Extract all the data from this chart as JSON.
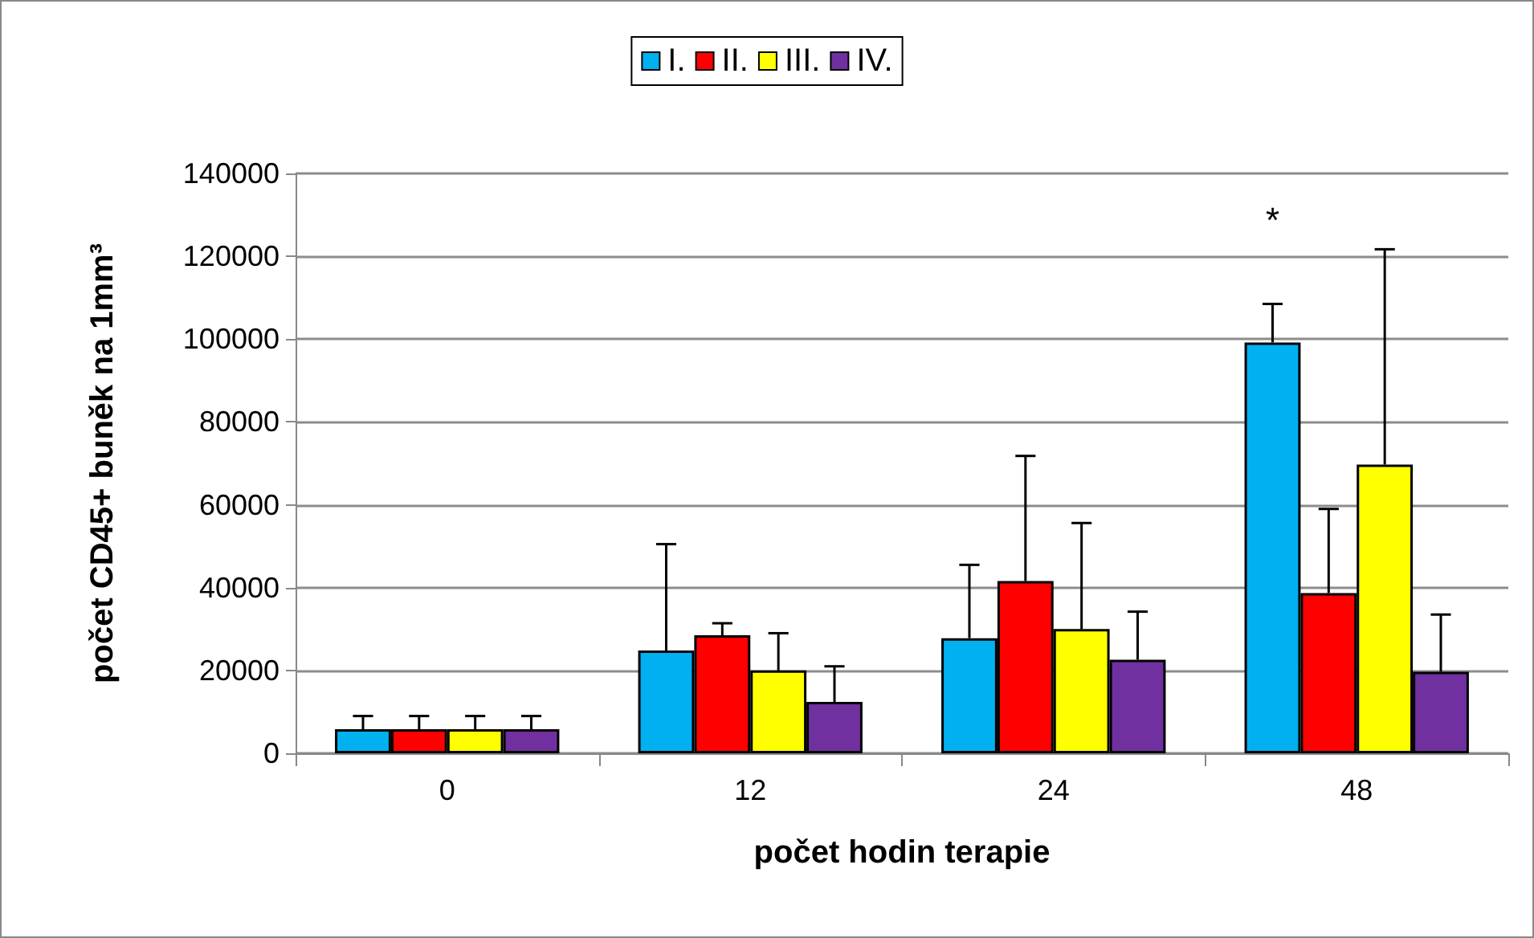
{
  "chart_data": {
    "type": "bar",
    "xlabel": "počet hodin terapie",
    "ylabel": "počet CD45+ buněk na 1mm³",
    "categories": [
      "0",
      "12",
      "24",
      "48"
    ],
    "series": [
      {
        "name": "I.",
        "color": "#00b0f0",
        "values": [
          5800,
          24800,
          27800,
          99200
        ],
        "errors": [
          [
            5800,
            9000
          ],
          [
            24800,
            50500
          ],
          [
            27800,
            45500
          ],
          [
            99200,
            108500
          ]
        ]
      },
      {
        "name": "II.",
        "color": "#ff0000",
        "values": [
          5800,
          28500,
          41600,
          38700
        ],
        "errors": [
          [
            5800,
            9000
          ],
          [
            28500,
            31400
          ],
          [
            41600,
            71800
          ],
          [
            38700,
            59000
          ]
        ]
      },
      {
        "name": "III.",
        "color": "#ffff00",
        "values": [
          5800,
          20000,
          30000,
          69700
        ],
        "errors": [
          [
            5800,
            9000
          ],
          [
            20000,
            29000
          ],
          [
            30000,
            55600
          ],
          [
            69700,
            121700
          ]
        ]
      },
      {
        "name": "IV.",
        "color": "#7030a0",
        "values": [
          5800,
          12400,
          22600,
          19700
        ],
        "errors": [
          [
            5800,
            9000
          ],
          [
            12400,
            21000
          ],
          [
            22600,
            34200
          ],
          [
            19700,
            33500
          ]
        ]
      }
    ],
    "ylim": [
      0,
      140000
    ],
    "yticks": [
      0,
      20000,
      40000,
      60000,
      80000,
      100000,
      120000,
      140000
    ],
    "grid": "y",
    "legend": "top",
    "annotations": [
      "*"
    ]
  }
}
